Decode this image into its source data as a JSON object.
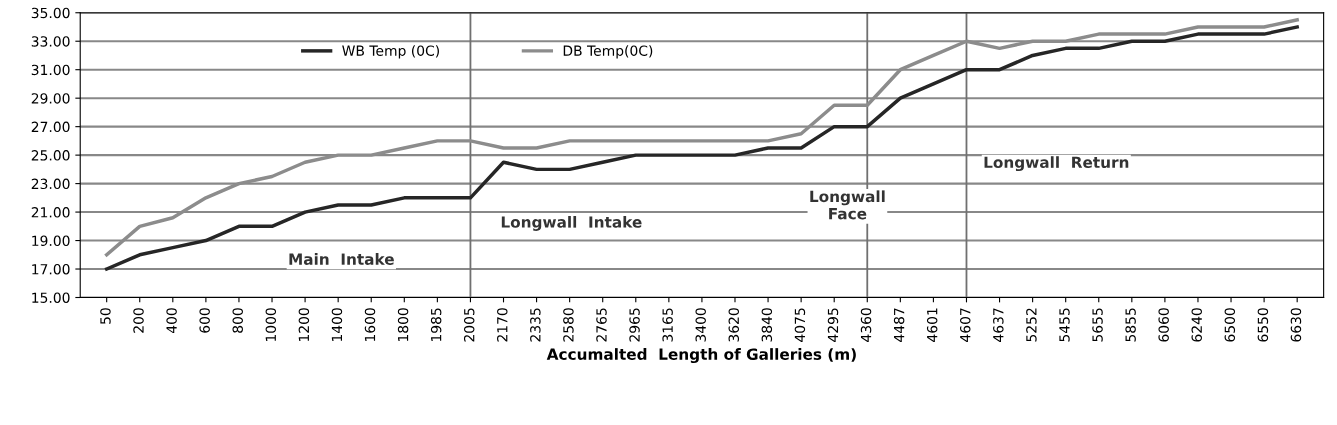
{
  "chart_data": {
    "type": "line",
    "xlabel": "Accumalted  Length of Galleries (m)",
    "categories": [
      "50",
      "200",
      "400",
      "600",
      "800",
      "1000",
      "1200",
      "1400",
      "1600",
      "1800",
      "1985",
      "2005",
      "2170",
      "2335",
      "2580",
      "2765",
      "2965",
      "3165",
      "3400",
      "3620",
      "3840",
      "4075",
      "4295",
      "4360",
      "4487",
      "4601",
      "4607",
      "4637",
      "5252",
      "5455",
      "5655",
      "5855",
      "6060",
      "6240",
      "6500",
      "6550",
      "6630"
    ],
    "series": [
      {
        "name": "WB Temp (0C)",
        "color": "#262626",
        "values": [
          17,
          18,
          18.5,
          19,
          20,
          20,
          21,
          21.5,
          21.5,
          22,
          22,
          22,
          24.5,
          24,
          24,
          24.5,
          25,
          25,
          25,
          25,
          25.5,
          25.5,
          27,
          27,
          29,
          30,
          31,
          31,
          32,
          32.5,
          32.5,
          33,
          33,
          33.5,
          33.5,
          33.5,
          34
        ]
      },
      {
        "name": "DB Temp(0C)",
        "color": "#8c8c8c",
        "values": [
          18,
          20,
          20.6,
          22,
          23,
          23.5,
          24.5,
          25,
          25,
          25.5,
          26,
          26,
          25.5,
          25.5,
          26,
          26,
          26,
          26,
          26,
          26,
          26,
          26.5,
          28.5,
          28.5,
          31,
          32,
          33,
          32.5,
          33,
          33,
          33.5,
          33.5,
          33.5,
          34,
          34,
          34,
          34.5
        ]
      }
    ],
    "ylim": [
      15,
      35
    ],
    "yticks": [
      {
        "value": 15,
        "label": "15.00"
      },
      {
        "value": 17,
        "label": "17.00"
      },
      {
        "value": 19,
        "label": "19.00"
      },
      {
        "value": 21,
        "label": "21.00"
      },
      {
        "value": 23,
        "label": "23.00"
      },
      {
        "value": 25,
        "label": "25.00"
      },
      {
        "value": 27,
        "label": "27.00"
      },
      {
        "value": 29,
        "label": "29.00"
      },
      {
        "value": 31,
        "label": "31.00"
      },
      {
        "value": 33,
        "label": "33.00"
      },
      {
        "value": 35,
        "label": "35.00"
      }
    ],
    "grid": "y",
    "legend": "top",
    "marker": "none",
    "line_style": "solid",
    "ref_lines": [
      {
        "axis": "x",
        "value": "2005",
        "color": "#707070"
      },
      {
        "axis": "x",
        "value": "4360",
        "color": "#707070"
      },
      {
        "axis": "x",
        "value": "4607",
        "color": "#707070"
      }
    ],
    "annotations": [
      "Main  Intake",
      "Longwall  Intake",
      "Longwall\nFace",
      "Longwall  Return"
    ]
  }
}
